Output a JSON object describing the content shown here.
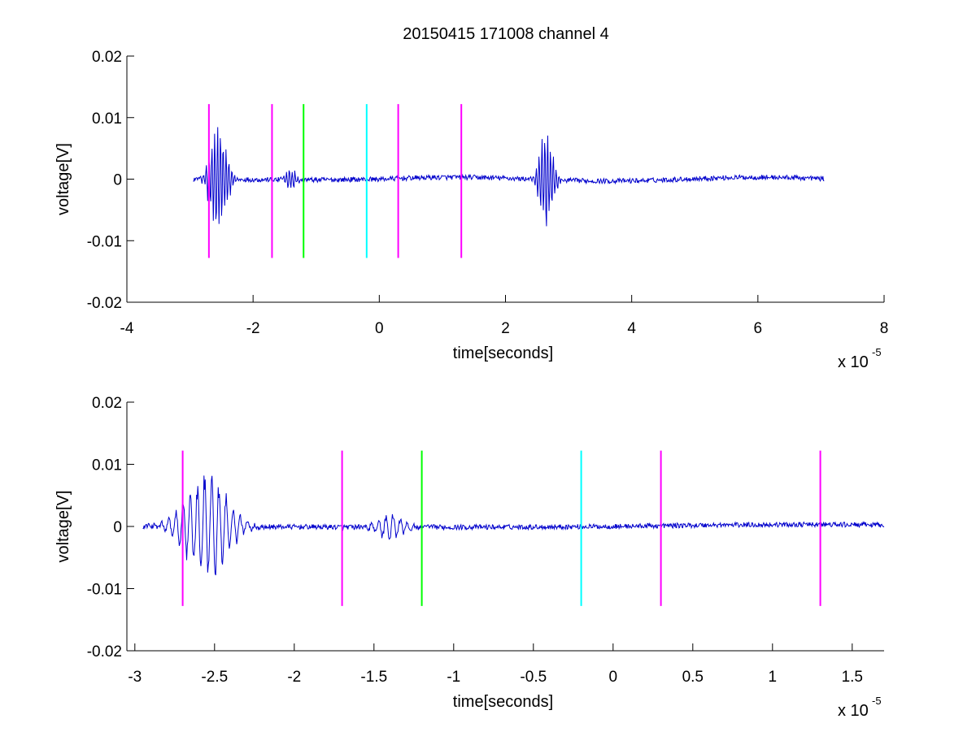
{
  "figure": {
    "title": "20150415 171008 channel 4"
  },
  "chart_data": [
    {
      "type": "line",
      "title": "20150415 171008 channel 4",
      "xlabel": "time[seconds]",
      "ylabel": "voltage[V]",
      "x_multiplier": "x 10",
      "x_multiplier_exp": "-5",
      "xlim": [
        -4,
        8
      ],
      "ylim": [
        -0.02,
        0.02
      ],
      "x_ticks": [
        -4,
        -2,
        0,
        2,
        4,
        6,
        8
      ],
      "x_tick_labels": [
        "-4",
        "-2",
        "0",
        "2",
        "4",
        "6",
        "8"
      ],
      "y_ticks": [
        -0.02,
        -0.01,
        0,
        0.01,
        0.02
      ],
      "y_tick_labels": [
        "-0.02",
        "-0.01",
        "0",
        "0.01",
        "0.02"
      ],
      "grid": false,
      "series": [
        {
          "color": "#0000cc",
          "x_range": [
            -2.95,
            7.05
          ],
          "baseline": 0.0,
          "noise": 0.0004,
          "bursts": [
            {
              "center": -2.55,
              "width": 0.25,
              "amp": 0.0095
            },
            {
              "center": -1.4,
              "width": 0.15,
              "amp": 0.0025
            },
            {
              "center": 2.65,
              "width": 0.2,
              "amp": 0.009
            }
          ]
        }
      ],
      "markers": [
        {
          "x": -2.7,
          "ymin": -0.0128,
          "ymax": 0.0122,
          "color": "#ff00ff"
        },
        {
          "x": -1.7,
          "ymin": -0.0128,
          "ymax": 0.0122,
          "color": "#ff00ff"
        },
        {
          "x": -1.2,
          "ymin": -0.0128,
          "ymax": 0.0122,
          "color": "#00ff00"
        },
        {
          "x": -0.2,
          "ymin": -0.0128,
          "ymax": 0.0122,
          "color": "#00ffff"
        },
        {
          "x": 0.3,
          "ymin": -0.0128,
          "ymax": 0.0122,
          "color": "#ff00ff"
        },
        {
          "x": 1.3,
          "ymin": -0.0128,
          "ymax": 0.0122,
          "color": "#ff00ff"
        }
      ]
    },
    {
      "type": "line",
      "title": "",
      "xlabel": "time[seconds]",
      "ylabel": "voltage[V]",
      "x_multiplier": "x 10",
      "x_multiplier_exp": "-5",
      "xlim": [
        -3.05,
        1.7
      ],
      "ylim": [
        -0.02,
        0.02
      ],
      "x_ticks": [
        -3,
        -2.5,
        -2,
        -1.5,
        -1,
        -0.5,
        0,
        0.5,
        1,
        1.5
      ],
      "x_tick_labels": [
        "-3",
        "-2.5",
        "-2",
        "-1.5",
        "-1",
        "-0.5",
        "0",
        "0.5",
        "1",
        "1.5"
      ],
      "y_ticks": [
        -0.02,
        -0.01,
        0,
        0.01,
        0.02
      ],
      "y_tick_labels": [
        "-0.02",
        "-0.01",
        "0",
        "0.01",
        "0.02"
      ],
      "grid": false,
      "series": [
        {
          "color": "#0000cc",
          "x_range": [
            -2.95,
            1.7
          ],
          "baseline": 0.0,
          "noise": 0.0004,
          "bursts": [
            {
              "center": -2.55,
              "width": 0.25,
              "amp": 0.0095
            },
            {
              "center": -1.4,
              "width": 0.15,
              "amp": 0.0025
            }
          ]
        }
      ],
      "markers": [
        {
          "x": -2.7,
          "ymin": -0.0128,
          "ymax": 0.0122,
          "color": "#ff00ff"
        },
        {
          "x": -1.7,
          "ymin": -0.0128,
          "ymax": 0.0122,
          "color": "#ff00ff"
        },
        {
          "x": -1.2,
          "ymin": -0.0128,
          "ymax": 0.0122,
          "color": "#00ff00"
        },
        {
          "x": -0.2,
          "ymin": -0.0128,
          "ymax": 0.0122,
          "color": "#00ffff"
        },
        {
          "x": 0.3,
          "ymin": -0.0128,
          "ymax": 0.0122,
          "color": "#ff00ff"
        },
        {
          "x": 1.3,
          "ymin": -0.0128,
          "ymax": 0.0122,
          "color": "#ff00ff"
        }
      ]
    }
  ]
}
